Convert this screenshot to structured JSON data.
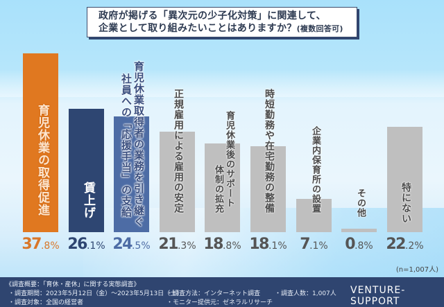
{
  "title": {
    "line1": "政府が掲げる「異次元の少子化対策」に関連して、",
    "line2": "企業として取り組みたいことはありますか？",
    "note": "(複数回答可)"
  },
  "chart_data": {
    "type": "bar",
    "title": "政府が掲げる「異次元の少子化対策」に関連して、企業として取り組みたいことはありますか？(複数回答可)",
    "categories": [
      "育児休業の取得促進",
      "賃上げ",
      "育児休業取得者の業務を引き継ぐ社員への「応援手当」の支給",
      "正規雇用による雇用の安定",
      "育児休業後のサポート体制の拡充",
      "時短勤務や在宅勤務の整備",
      "企業内保育所の設置",
      "その他",
      "特にない"
    ],
    "values": [
      37.8,
      26.1,
      24.5,
      21.3,
      18.8,
      18.1,
      7.1,
      0.8,
      22.2
    ],
    "unit": "%",
    "xlabel": "",
    "ylabel": "",
    "ylim": [
      0,
      40
    ],
    "grid": false,
    "legend": false,
    "sample_note": "(n=1,007人)"
  },
  "bars": [
    {
      "lines": [
        "育児休業の取得促進"
      ],
      "int": "37",
      "dec": ".8%",
      "color": "#e07820",
      "text_color": "#fbe3c8",
      "pct_color": "#d9772a"
    },
    {
      "lines": [
        "賃上げ"
      ],
      "int": "26",
      "dec": ".1%",
      "color": "#2e4672",
      "text_color": "#ffffff",
      "pct_color": "#2e4672"
    },
    {
      "lines": [
        "育児休業取得者の業務を引き継ぐ",
        "社員への「応援手当」の支給"
      ],
      "int": "24",
      "dec": ".5%",
      "color": "#4d6ca5",
      "text_color": "#ffffff",
      "pct_color": "#4d6ca5"
    },
    {
      "lines": [
        "正規雇用による雇用の安定"
      ],
      "int": "21",
      "dec": ".3%",
      "color": "#bfbfbf",
      "text_color": "#4a4a4a",
      "pct_color": "#555555"
    },
    {
      "lines": [
        "育児休業後のサポート",
        "体制の拡充"
      ],
      "int": "18",
      "dec": ".8%",
      "color": "#bfbfbf",
      "text_color": "#4a4a4a",
      "pct_color": "#555555"
    },
    {
      "lines": [
        "時短勤務や在宅勤務の整備"
      ],
      "int": "18",
      "dec": ".1%",
      "color": "#bfbfbf",
      "text_color": "#4a4a4a",
      "pct_color": "#555555"
    },
    {
      "lines": [
        "企業内保育所の設置"
      ],
      "int": "7",
      "dec": ".1%",
      "color": "#bfbfbf",
      "text_color": "#4a4a4a",
      "pct_color": "#555555"
    },
    {
      "lines": [
        "その他"
      ],
      "int": "0",
      "dec": ".8%",
      "color": "#bfbfbf",
      "text_color": "#4a4a4a",
      "pct_color": "#555555"
    },
    {
      "lines": [
        "特にない"
      ],
      "int": "22",
      "dec": ".2%",
      "color": "#bfbfbf",
      "text_color": "#4a4a4a",
      "pct_color": "#555555"
    }
  ],
  "footer": {
    "heading": "《調査概要：「育休・産休」に関する実態調査》",
    "period": "・調査期間：2023年5月12日（金）～2023年5月13日（土）",
    "target": "・調査対象：全国の経営者",
    "method": "・調査方法：インターネット調査",
    "provider": "・モニター提供元：ゼネラルリサーチ",
    "count": "・調査人数：1,007人",
    "brand": "VENTURE-SUPPORT"
  }
}
